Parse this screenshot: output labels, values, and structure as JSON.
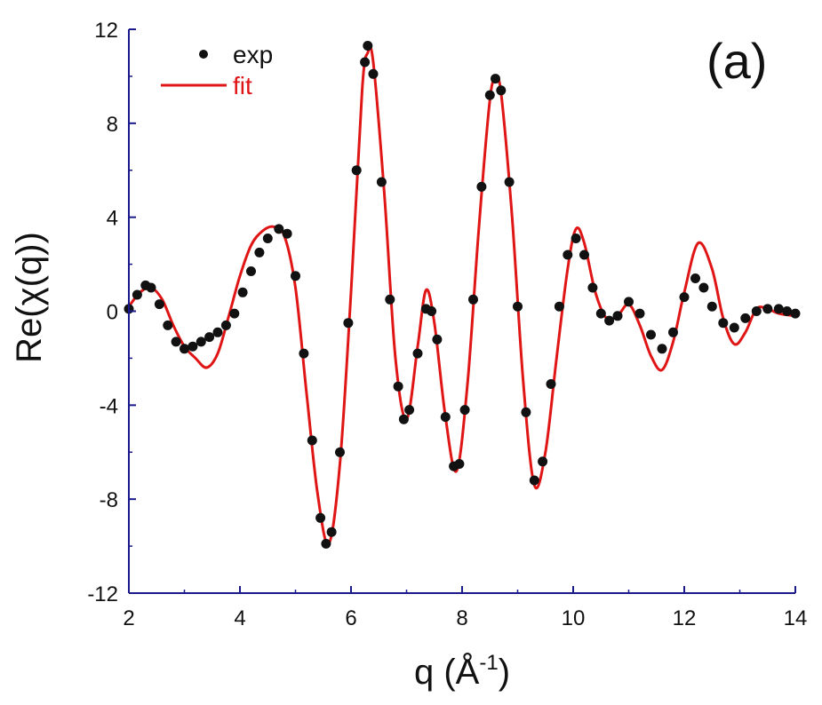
{
  "chart_data": {
    "type": "line",
    "panel_label": "(a)",
    "xlabel": {
      "prefix": "q (",
      "unit": "Å",
      "exponent": "-1",
      "suffix": ")"
    },
    "ylabel": "Re(χ(q))",
    "xlim": [
      2,
      14
    ],
    "ylim": [
      -12,
      12
    ],
    "x_ticks": [
      2,
      4,
      6,
      8,
      10,
      12,
      14
    ],
    "y_ticks": [
      -12,
      -8,
      -4,
      0,
      4,
      8,
      12
    ],
    "x_tick_labels": [
      "2",
      "4",
      "6",
      "8",
      "10",
      "12",
      "14"
    ],
    "y_tick_labels": [
      "-12",
      "-8",
      "-4",
      "0",
      "4",
      "8",
      "12"
    ],
    "axis_color": "#1a1a8c",
    "legend": {
      "placement": "top-left"
    },
    "series": [
      {
        "name": "exp",
        "style": "markers",
        "color": "#111111",
        "x": [
          2.0,
          2.15,
          2.3,
          2.4,
          2.55,
          2.7,
          2.85,
          3.0,
          3.15,
          3.3,
          3.45,
          3.6,
          3.75,
          3.9,
          4.05,
          4.2,
          4.35,
          4.5,
          4.7,
          4.85,
          5.0,
          5.15,
          5.3,
          5.45,
          5.55,
          5.65,
          5.8,
          5.95,
          6.1,
          6.25,
          6.3,
          6.4,
          6.55,
          6.7,
          6.85,
          6.95,
          7.05,
          7.2,
          7.35,
          7.45,
          7.55,
          7.7,
          7.85,
          7.95,
          8.05,
          8.2,
          8.35,
          8.5,
          8.6,
          8.7,
          8.85,
          9.0,
          9.15,
          9.3,
          9.45,
          9.6,
          9.75,
          9.9,
          10.05,
          10.2,
          10.35,
          10.5,
          10.65,
          10.8,
          11.0,
          11.2,
          11.4,
          11.6,
          11.8,
          12.0,
          12.2,
          12.35,
          12.5,
          12.7,
          12.9,
          13.1,
          13.3,
          13.5,
          13.7,
          13.85,
          14.0
        ],
        "y": [
          0.1,
          0.7,
          1.1,
          1.0,
          0.3,
          -0.6,
          -1.3,
          -1.6,
          -1.5,
          -1.3,
          -1.1,
          -0.9,
          -0.6,
          -0.1,
          0.8,
          1.7,
          2.5,
          3.1,
          3.5,
          3.3,
          1.5,
          -1.8,
          -5.5,
          -8.8,
          -9.9,
          -9.4,
          -6.0,
          -0.5,
          6.0,
          10.6,
          11.3,
          10.1,
          5.5,
          0.5,
          -3.2,
          -4.6,
          -4.2,
          -1.8,
          0.1,
          0.0,
          -1.2,
          -4.5,
          -6.6,
          -6.5,
          -4.2,
          0.5,
          5.3,
          9.2,
          9.9,
          9.4,
          5.5,
          0.2,
          -4.3,
          -7.2,
          -6.4,
          -3.1,
          0.2,
          2.4,
          3.1,
          2.4,
          1.0,
          -0.1,
          -0.4,
          -0.2,
          0.4,
          -0.1,
          -1.0,
          -1.6,
          -0.9,
          0.6,
          1.4,
          1.0,
          0.2,
          -0.5,
          -0.7,
          -0.3,
          0.0,
          0.1,
          0.1,
          0.0,
          -0.1
        ]
      },
      {
        "name": "fit",
        "style": "line",
        "color": "#e01515",
        "x": [
          2.0,
          2.2,
          2.4,
          2.6,
          2.8,
          3.0,
          3.2,
          3.4,
          3.6,
          3.8,
          4.0,
          4.2,
          4.4,
          4.6,
          4.8,
          5.0,
          5.2,
          5.4,
          5.6,
          5.8,
          6.0,
          6.2,
          6.3,
          6.4,
          6.6,
          6.8,
          7.0,
          7.2,
          7.35,
          7.5,
          7.7,
          7.9,
          8.1,
          8.3,
          8.5,
          8.6,
          8.7,
          8.9,
          9.1,
          9.3,
          9.5,
          9.7,
          9.9,
          10.05,
          10.2,
          10.4,
          10.6,
          10.8,
          11.0,
          11.2,
          11.4,
          11.6,
          11.8,
          12.0,
          12.25,
          12.5,
          12.7,
          12.9,
          13.1,
          13.3,
          13.5,
          13.7,
          14.0
        ],
        "y": [
          0.2,
          0.8,
          1.0,
          0.5,
          -0.6,
          -1.5,
          -2.0,
          -2.4,
          -1.8,
          -0.2,
          1.5,
          2.8,
          3.4,
          3.6,
          3.2,
          1.0,
          -3.5,
          -7.8,
          -9.9,
          -6.5,
          0.8,
          9.4,
          11.0,
          10.6,
          5.0,
          -2.0,
          -4.6,
          -1.5,
          0.9,
          -0.5,
          -4.5,
          -6.8,
          -3.0,
          3.5,
          9.0,
          9.8,
          9.3,
          4.0,
          -3.0,
          -7.4,
          -6.0,
          -2.0,
          1.8,
          3.5,
          2.9,
          0.8,
          -0.3,
          -0.2,
          0.3,
          -0.6,
          -1.9,
          -2.5,
          -1.3,
          0.8,
          2.9,
          1.8,
          -0.3,
          -1.4,
          -0.9,
          0.1,
          0.1,
          -0.1,
          -0.2
        ]
      }
    ]
  }
}
